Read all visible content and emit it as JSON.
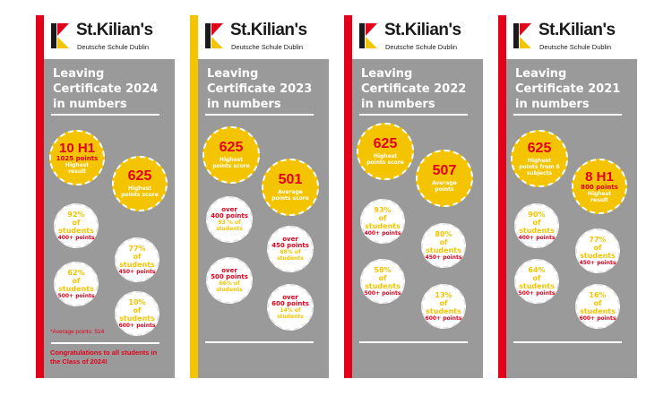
{
  "brand": {
    "name": "St.Kilian's",
    "tagline": "Deutsche Schule Dublin",
    "colors": {
      "red": "#e3001b",
      "yellow": "#f5c400",
      "black": "#1a1a1a",
      "panel": "#9a9a9a"
    }
  },
  "banners": [
    {
      "stripe": "red",
      "title_lines": [
        "Leaving",
        "Certificate 2024",
        "in numbers"
      ],
      "c1": {
        "big": "10 H1",
        "sub": "1025 points",
        "note": "Highest result"
      },
      "c2": {
        "big": "625",
        "note": "Highest points score"
      },
      "w1": {
        "pct": "92%",
        "of": "of students",
        "pts": "400+ points"
      },
      "w2": {
        "pct": "77%",
        "of": "of students",
        "pts": "450+ points"
      },
      "w3": {
        "pct": "62%",
        "of": "of students",
        "pts": "500+ points"
      },
      "w4": {
        "pct": "10%",
        "of": "of students",
        "pts": "600+ points"
      },
      "average_note": "*Average points: 514",
      "congrats": "Congratulations to all students in the Class of 2024!"
    },
    {
      "stripe": "yellow",
      "title_lines": [
        "Leaving",
        "Certificate 2023",
        "in numbers"
      ],
      "c1": {
        "big": "625",
        "note": "Highest points score"
      },
      "c2": {
        "big": "501",
        "note": "Average points score"
      },
      "w1": {
        "top": "over",
        "mid": "400 points",
        "pct": "93 % of students"
      },
      "w2": {
        "top": "over",
        "mid": "450 points",
        "pct": "68% of students"
      },
      "w3": {
        "top": "over",
        "mid": "500 points",
        "pct": "66% of students"
      },
      "w4": {
        "top": "over",
        "mid": "600 points",
        "pct": "14% of students"
      }
    },
    {
      "stripe": "red",
      "title_lines": [
        "Leaving",
        "Certificate 2022",
        "in numbers"
      ],
      "c1": {
        "big": "625",
        "note": "Highest points score"
      },
      "c2": {
        "big": "507",
        "note": "Average points"
      },
      "w1": {
        "pct": "93%",
        "of": "of students",
        "pts": "400+ points"
      },
      "w2": {
        "pct": "80%",
        "of": "of students",
        "pts": "450+ points"
      },
      "w3": {
        "pct": "58%",
        "of": "of students",
        "pts": "500+ points"
      },
      "w4": {
        "pct": "13%",
        "of": "of students",
        "pts": "600+ points"
      }
    },
    {
      "stripe": "red",
      "title_lines": [
        "Leaving",
        "Certificate 2021",
        "in numbers"
      ],
      "c1": {
        "big": "625",
        "note": "Highest points from 6 subjects"
      },
      "c2": {
        "big": "8 H1",
        "sub": "800 points",
        "note": "Highest result"
      },
      "w1": {
        "pct": "90%",
        "of": "of students",
        "pts": "400+ points"
      },
      "w2": {
        "pct": "77%",
        "of": "of students",
        "pts": "450+ points"
      },
      "w3": {
        "pct": "64%",
        "of": "of students",
        "pts": "500+ points"
      },
      "w4": {
        "pct": "16%",
        "of": "of students",
        "pts": "600+ points"
      }
    }
  ]
}
